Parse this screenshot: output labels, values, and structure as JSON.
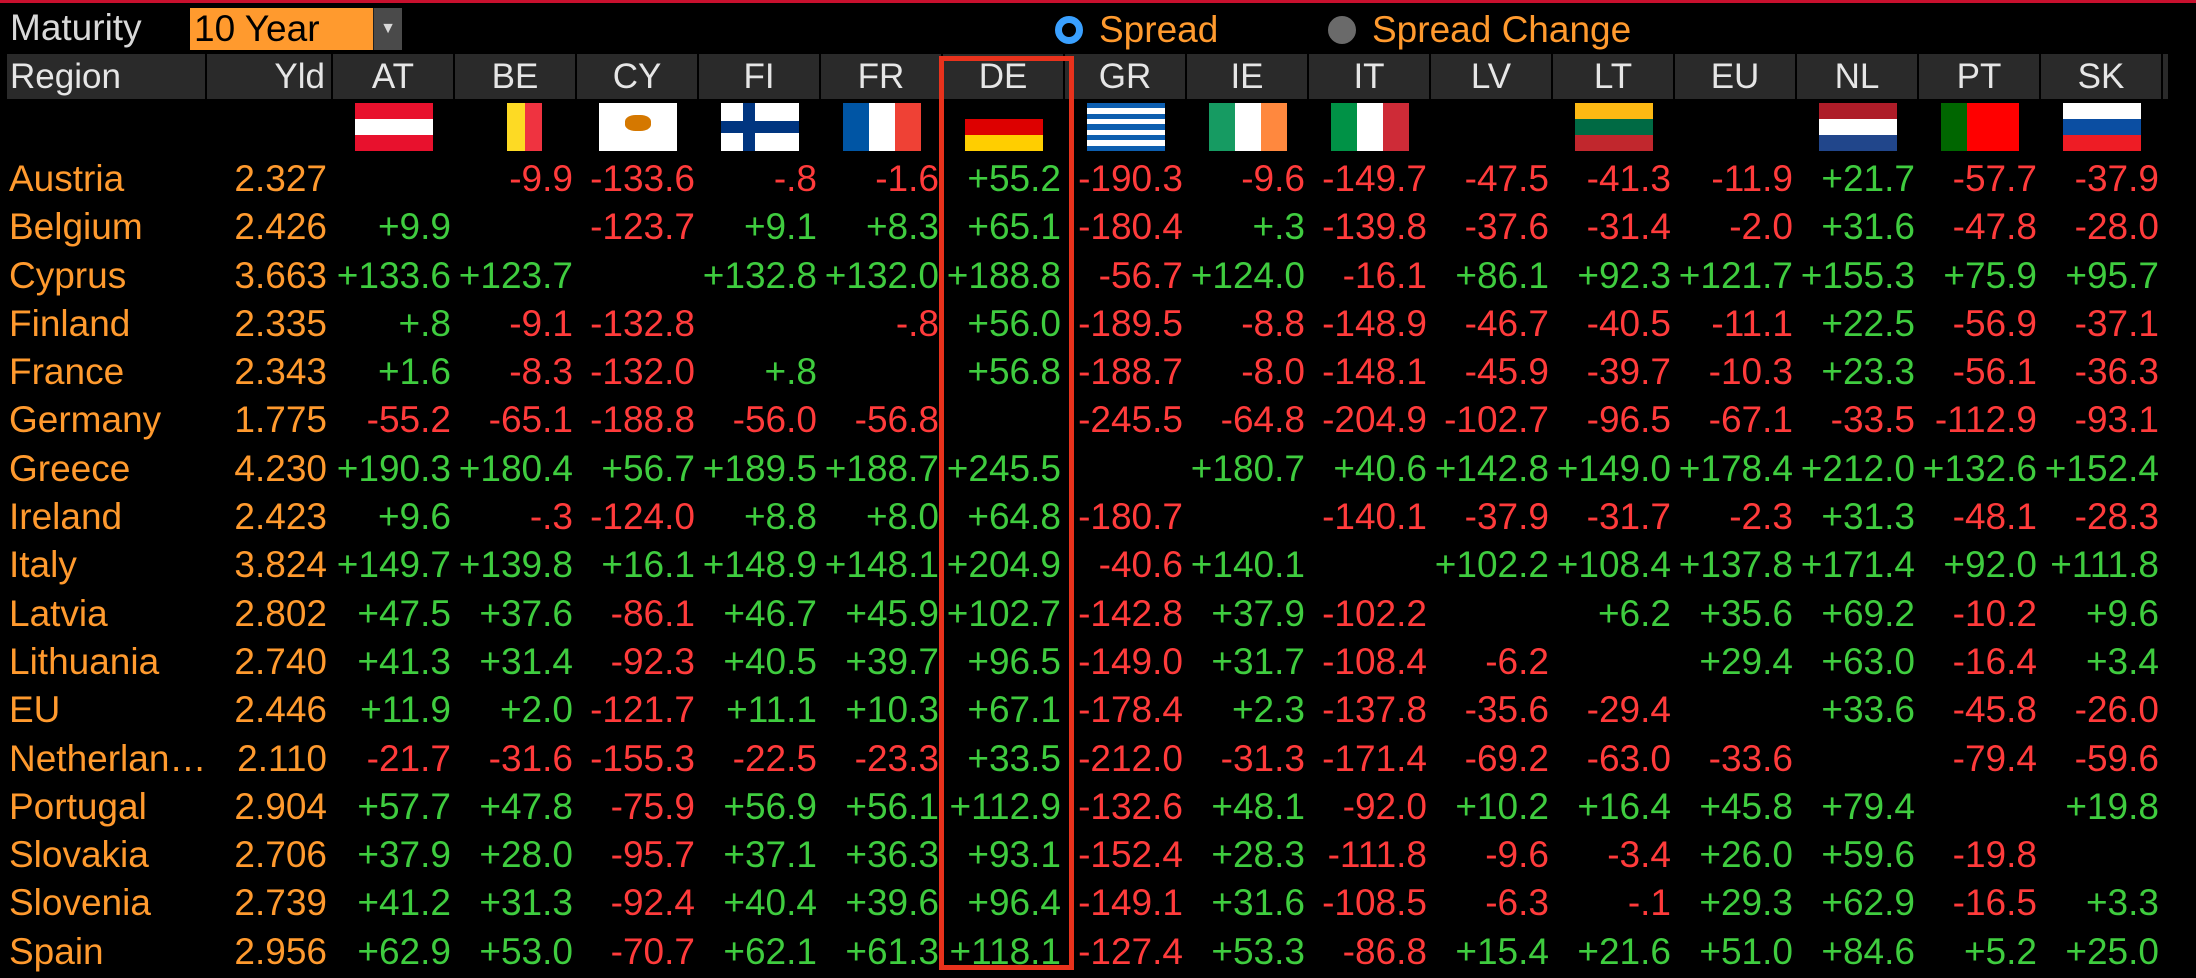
{
  "controls": {
    "maturity_label": "Maturity",
    "maturity_value": "10 Year",
    "spread_label": "Spread",
    "spread_change_label": "Spread Change",
    "selected": "Spread"
  },
  "headers": [
    "Region",
    "Yld",
    "AT",
    "BE",
    "CY",
    "FI",
    "FR",
    "DE",
    "GR",
    "IE",
    "IT",
    "LV",
    "LT",
    "EU",
    "NL",
    "PT",
    "SK"
  ],
  "flags": [
    "AT",
    "BE",
    "CY",
    "FI",
    "FR",
    "DE",
    "GR",
    "IE",
    "IT",
    "",
    "LT",
    "",
    "NL",
    "PT",
    "SK"
  ],
  "highlighted_column": "DE",
  "rows": [
    {
      "region": "Austria",
      "yld": "2.327",
      "values": [
        "",
        "-9.9",
        "-133.6",
        "-.8",
        "-1.6",
        "+55.2",
        "-190.3",
        "-9.6",
        "-149.7",
        "-47.5",
        "-41.3",
        "-11.9",
        "+21.7",
        "-57.7",
        "-37.9"
      ]
    },
    {
      "region": "Belgium",
      "yld": "2.426",
      "values": [
        "+9.9",
        "",
        "-123.7",
        "+9.1",
        "+8.3",
        "+65.1",
        "-180.4",
        "+.3",
        "-139.8",
        "-37.6",
        "-31.4",
        "-2.0",
        "+31.6",
        "-47.8",
        "-28.0"
      ]
    },
    {
      "region": "Cyprus",
      "yld": "3.663",
      "values": [
        "+133.6",
        "+123.7",
        "",
        "+132.8",
        "+132.0",
        "+188.8",
        "-56.7",
        "+124.0",
        "-16.1",
        "+86.1",
        "+92.3",
        "+121.7",
        "+155.3",
        "+75.9",
        "+95.7"
      ]
    },
    {
      "region": "Finland",
      "yld": "2.335",
      "values": [
        "+.8",
        "-9.1",
        "-132.8",
        "",
        "-.8",
        "+56.0",
        "-189.5",
        "-8.8",
        "-148.9",
        "-46.7",
        "-40.5",
        "-11.1",
        "+22.5",
        "-56.9",
        "-37.1"
      ]
    },
    {
      "region": "France",
      "yld": "2.343",
      "values": [
        "+1.6",
        "-8.3",
        "-132.0",
        "+.8",
        "",
        "+56.8",
        "-188.7",
        "-8.0",
        "-148.1",
        "-45.9",
        "-39.7",
        "-10.3",
        "+23.3",
        "-56.1",
        "-36.3"
      ]
    },
    {
      "region": "Germany",
      "yld": "1.775",
      "values": [
        "-55.2",
        "-65.1",
        "-188.8",
        "-56.0",
        "-56.8",
        "",
        "-245.5",
        "-64.8",
        "-204.9",
        "-102.7",
        "-96.5",
        "-67.1",
        "-33.5",
        "-112.9",
        "-93.1"
      ]
    },
    {
      "region": "Greece",
      "yld": "4.230",
      "values": [
        "+190.3",
        "+180.4",
        "+56.7",
        "+189.5",
        "+188.7",
        "+245.5",
        "",
        "+180.7",
        "+40.6",
        "+142.8",
        "+149.0",
        "+178.4",
        "+212.0",
        "+132.6",
        "+152.4"
      ]
    },
    {
      "region": "Ireland",
      "yld": "2.423",
      "values": [
        "+9.6",
        "-.3",
        "-124.0",
        "+8.8",
        "+8.0",
        "+64.8",
        "-180.7",
        "",
        "-140.1",
        "-37.9",
        "-31.7",
        "-2.3",
        "+31.3",
        "-48.1",
        "-28.3"
      ]
    },
    {
      "region": "Italy",
      "yld": "3.824",
      "values": [
        "+149.7",
        "+139.8",
        "+16.1",
        "+148.9",
        "+148.1",
        "+204.9",
        "-40.6",
        "+140.1",
        "",
        "+102.2",
        "+108.4",
        "+137.8",
        "+171.4",
        "+92.0",
        "+111.8"
      ]
    },
    {
      "region": "Latvia",
      "yld": "2.802",
      "values": [
        "+47.5",
        "+37.6",
        "-86.1",
        "+46.7",
        "+45.9",
        "+102.7",
        "-142.8",
        "+37.9",
        "-102.2",
        "",
        "+6.2",
        "+35.6",
        "+69.2",
        "-10.2",
        "+9.6"
      ]
    },
    {
      "region": "Lithuania",
      "yld": "2.740",
      "values": [
        "+41.3",
        "+31.4",
        "-92.3",
        "+40.5",
        "+39.7",
        "+96.5",
        "-149.0",
        "+31.7",
        "-108.4",
        "-6.2",
        "",
        "+29.4",
        "+63.0",
        "-16.4",
        "+3.4"
      ]
    },
    {
      "region": "EU",
      "yld": "2.446",
      "values": [
        "+11.9",
        "+2.0",
        "-121.7",
        "+11.1",
        "+10.3",
        "+67.1",
        "-178.4",
        "+2.3",
        "-137.8",
        "-35.6",
        "-29.4",
        "",
        "+33.6",
        "-45.8",
        "-26.0"
      ]
    },
    {
      "region": "Netherlan…",
      "yld": "2.110",
      "values": [
        "-21.7",
        "-31.6",
        "-155.3",
        "-22.5",
        "-23.3",
        "+33.5",
        "-212.0",
        "-31.3",
        "-171.4",
        "-69.2",
        "-63.0",
        "-33.6",
        "",
        "-79.4",
        "-59.6"
      ]
    },
    {
      "region": "Portugal",
      "yld": "2.904",
      "values": [
        "+57.7",
        "+47.8",
        "-75.9",
        "+56.9",
        "+56.1",
        "+112.9",
        "-132.6",
        "+48.1",
        "-92.0",
        "+10.2",
        "+16.4",
        "+45.8",
        "+79.4",
        "",
        "+19.8"
      ]
    },
    {
      "region": "Slovakia",
      "yld": "2.706",
      "values": [
        "+37.9",
        "+28.0",
        "-95.7",
        "+37.1",
        "+36.3",
        "+93.1",
        "-152.4",
        "+28.3",
        "-111.8",
        "-9.6",
        "-3.4",
        "+26.0",
        "+59.6",
        "-19.8",
        ""
      ]
    },
    {
      "region": "Slovenia",
      "yld": "2.739",
      "values": [
        "+41.2",
        "+31.3",
        "-92.4",
        "+40.4",
        "+39.6",
        "+96.4",
        "-149.1",
        "+31.6",
        "-108.5",
        "-6.3",
        "-.1",
        "+29.3",
        "+62.9",
        "-16.5",
        "+3.3"
      ]
    },
    {
      "region": "Spain",
      "yld": "2.956",
      "values": [
        "+62.9",
        "+53.0",
        "-70.7",
        "+62.1",
        "+61.3",
        "+118.1",
        "-127.4",
        "+53.3",
        "-86.8",
        "+15.4",
        "+21.6",
        "+51.0",
        "+84.6",
        "+5.2",
        "+25.0"
      ]
    }
  ],
  "colors": {
    "positive": "#3fcc3f",
    "negative": "#ff3b3b",
    "label": "#ff9a2e",
    "highlight_border": "#e8321c",
    "selected_radio": "#3aa0ff"
  }
}
